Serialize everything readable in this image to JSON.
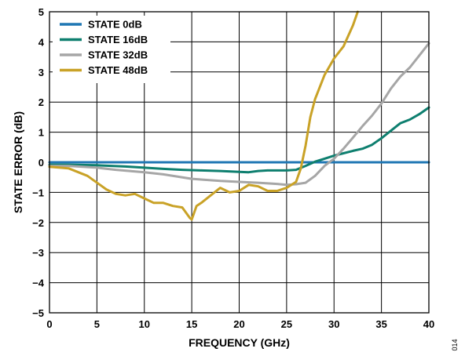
{
  "figure_id": "014",
  "chart_data": {
    "type": "line",
    "xlabel": "FREQUENCY (GHz)",
    "ylabel": "STATE ERROR (dB)",
    "xlim": [
      0,
      40
    ],
    "ylim": [
      -5,
      5
    ],
    "xticks": [
      "0",
      "5",
      "10",
      "15",
      "20",
      "25",
      "30",
      "35",
      "40"
    ],
    "yticks": [
      "5",
      "4",
      "3",
      "2",
      "1",
      "0",
      "−1",
      "−2",
      "−3",
      "−4",
      "−5"
    ],
    "grid": true,
    "legend_position": "top-left",
    "series": [
      {
        "name": "STATE 0dB",
        "color": "#1f77b4",
        "x": [
          0,
          40
        ],
        "y": [
          0,
          0
        ]
      },
      {
        "name": "STATE 16dB",
        "color": "#0e7f6f",
        "x": [
          0,
          2,
          5,
          8,
          10,
          12,
          14,
          16,
          18,
          20,
          21,
          22,
          23,
          24,
          25,
          26,
          27,
          28,
          29,
          30,
          31,
          32,
          33,
          34,
          35,
          36,
          37,
          38,
          39,
          40
        ],
        "y": [
          -0.08,
          -0.08,
          -0.1,
          -0.14,
          -0.18,
          -0.22,
          -0.25,
          -0.27,
          -0.29,
          -0.32,
          -0.33,
          -0.29,
          -0.27,
          -0.27,
          -0.27,
          -0.25,
          -0.12,
          0.02,
          0.12,
          0.22,
          0.3,
          0.38,
          0.45,
          0.58,
          0.8,
          1.05,
          1.3,
          1.42,
          1.6,
          1.82
        ]
      },
      {
        "name": "STATE 32dB",
        "color": "#a6a6a6",
        "x": [
          0,
          2,
          5,
          7,
          10,
          12,
          15,
          18,
          20,
          22,
          24,
          25,
          26,
          27,
          28,
          29,
          30,
          31,
          32,
          33,
          34,
          35,
          36,
          37,
          38,
          39,
          40
        ],
        "y": [
          -0.12,
          -0.12,
          -0.18,
          -0.25,
          -0.33,
          -0.4,
          -0.55,
          -0.62,
          -0.65,
          -0.68,
          -0.72,
          -0.75,
          -0.73,
          -0.68,
          -0.45,
          -0.12,
          0.12,
          0.45,
          0.82,
          1.2,
          1.55,
          1.95,
          2.45,
          2.85,
          3.15,
          3.55,
          3.95
        ]
      },
      {
        "name": "STATE 48dB",
        "color": "#c9a227",
        "x": [
          0,
          2,
          4,
          6,
          7,
          8,
          9,
          10,
          11,
          12,
          13,
          14,
          14.8,
          15,
          15.5,
          16,
          17,
          18,
          19,
          20,
          21,
          22,
          23,
          24,
          25,
          26,
          26.5,
          27,
          27.5,
          28,
          29,
          30,
          31,
          32,
          32.5
        ],
        "y": [
          -0.15,
          -0.2,
          -0.45,
          -0.9,
          -1.05,
          -1.1,
          -1.05,
          -1.2,
          -1.35,
          -1.35,
          -1.45,
          -1.5,
          -1.85,
          -1.9,
          -1.45,
          -1.35,
          -1.1,
          -0.85,
          -1.0,
          -0.95,
          -0.75,
          -0.8,
          -0.95,
          -0.95,
          -0.85,
          -0.65,
          -0.2,
          0.55,
          1.5,
          2.1,
          2.9,
          3.45,
          3.85,
          4.55,
          5.0
        ]
      }
    ]
  }
}
